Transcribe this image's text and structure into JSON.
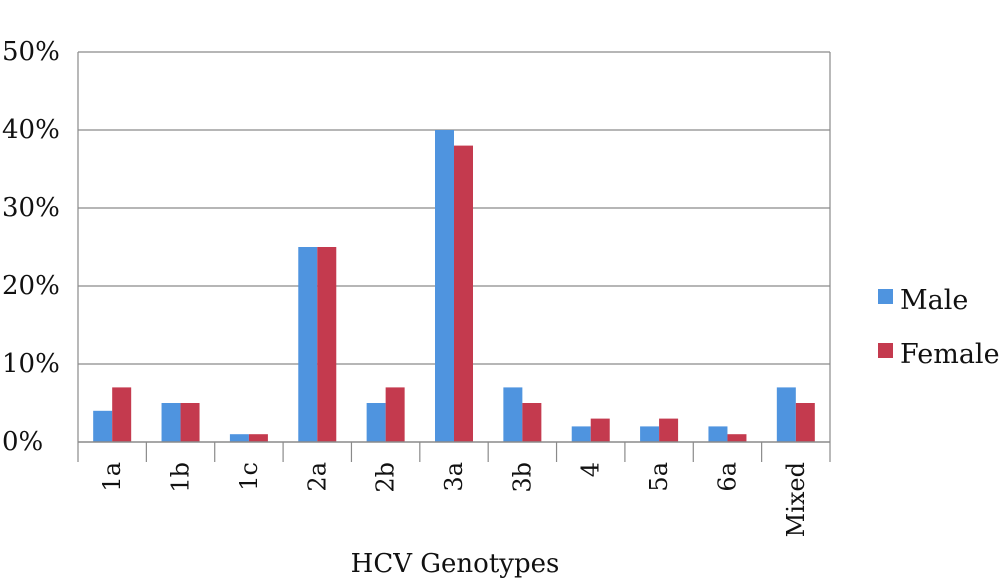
{
  "chart_data": {
    "type": "bar",
    "xlabel": "HCV Genotypes",
    "ylabel": "",
    "ylim": [
      0,
      50
    ],
    "y_ticks": [
      "0%",
      "10%",
      "20%",
      "30%",
      "40%",
      "50%"
    ],
    "grid": true,
    "legend_position": "right",
    "categories": [
      "1a",
      "1b",
      "1c",
      "2a",
      "2b",
      "3a",
      "3b",
      "4",
      "5a",
      "6a",
      "Mixed"
    ],
    "series": [
      {
        "name": "Male",
        "color": "#4f94df",
        "values": [
          4,
          5,
          1,
          25,
          5,
          40,
          7,
          2,
          2,
          2,
          7
        ]
      },
      {
        "name": "Female",
        "color": "#c43a4e",
        "values": [
          7,
          5,
          1,
          25,
          7,
          38,
          5,
          3,
          3,
          1,
          5
        ]
      }
    ]
  }
}
